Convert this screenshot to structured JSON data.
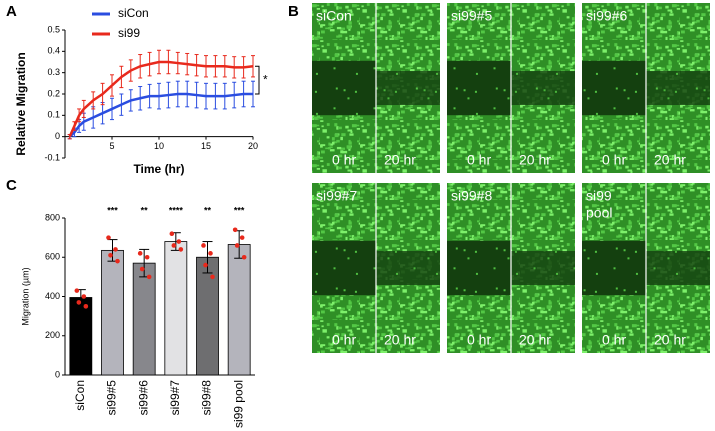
{
  "panel_labels": [
    "A",
    "B",
    "C"
  ],
  "chart_data": [
    {
      "type": "line",
      "xlabel": "Time (hr)",
      "ylabel": "Relative Migration",
      "x": [
        0.5,
        1,
        1.5,
        2,
        3,
        4,
        5,
        6,
        7,
        8,
        9,
        10,
        11,
        12,
        13,
        14,
        15,
        16,
        17,
        18,
        19,
        20
      ],
      "series": [
        {
          "name": "siCon",
          "color": "#2a4de0",
          "values": [
            0,
            0.02,
            0.05,
            0.07,
            0.09,
            0.11,
            0.13,
            0.15,
            0.17,
            0.18,
            0.19,
            0.19,
            0.195,
            0.2,
            0.2,
            0.195,
            0.19,
            0.19,
            0.19,
            0.195,
            0.2,
            0.2
          ],
          "errors": [
            0.01,
            0.02,
            0.03,
            0.04,
            0.05,
            0.05,
            0.05,
            0.05,
            0.05,
            0.055,
            0.055,
            0.06,
            0.06,
            0.06,
            0.06,
            0.06,
            0.06,
            0.06,
            0.06,
            0.06,
            0.06,
            0.06
          ]
        },
        {
          "name": "si99",
          "color": "#e8291c",
          "values": [
            0,
            0.05,
            0.1,
            0.13,
            0.17,
            0.2,
            0.24,
            0.28,
            0.31,
            0.33,
            0.34,
            0.35,
            0.35,
            0.345,
            0.34,
            0.335,
            0.33,
            0.33,
            0.33,
            0.325,
            0.325,
            0.33
          ],
          "errors": [
            0.01,
            0.02,
            0.03,
            0.04,
            0.04,
            0.05,
            0.05,
            0.05,
            0.05,
            0.055,
            0.055,
            0.055,
            0.055,
            0.05,
            0.05,
            0.05,
            0.05,
            0.05,
            0.05,
            0.05,
            0.05,
            0.05
          ]
        }
      ],
      "xlim": [
        0,
        20
      ],
      "xticks": [
        5,
        10,
        15,
        20
      ],
      "ylim": [
        -0.1,
        0.5
      ],
      "yticks": [
        -0.1,
        0,
        0.1,
        0.2,
        0.3,
        0.4,
        0.5
      ],
      "annotation": "*"
    },
    {
      "type": "bar",
      "ylabel": "Migration (µm)",
      "categories": [
        "siCon",
        "si99#5",
        "si99#6",
        "si99#7",
        "si99#8",
        "si99 pool"
      ],
      "values": [
        395,
        635,
        570,
        680,
        600,
        665
      ],
      "errors": [
        40,
        55,
        70,
        45,
        80,
        70
      ],
      "colors": [
        "#000000",
        "#b4b4bc",
        "#87878c",
        "#e2e2e4",
        "#6e6e70",
        "#b4b4bc"
      ],
      "significance": [
        null,
        "***",
        "**",
        "****",
        "**",
        "***"
      ],
      "points": [
        [
          430,
          400,
          370,
          350
        ],
        [
          700,
          640,
          610,
          580
        ],
        [
          620,
          600,
          540,
          500
        ],
        [
          720,
          680,
          660,
          640
        ],
        [
          660,
          620,
          560,
          500
        ],
        [
          740,
          700,
          660,
          600
        ]
      ],
      "point_color": "#e8291c",
      "ylim": [
        0,
        800
      ],
      "yticks": [
        0,
        200,
        400,
        600,
        800
      ]
    }
  ],
  "images": [
    {
      "label": [
        "siCon"
      ],
      "times": [
        "0 hr",
        "20 hr"
      ]
    },
    {
      "label": [
        "si99#5"
      ],
      "times": [
        "0 hr",
        "20 hr"
      ]
    },
    {
      "label": [
        "si99#6"
      ],
      "times": [
        "0 hr",
        "20 hr"
      ]
    },
    {
      "label": [
        "si99#7"
      ],
      "times": [
        "0 hr",
        "20 hr"
      ]
    },
    {
      "label": [
        "si99#8"
      ],
      "times": [
        "0 hr",
        "20 hr"
      ]
    },
    {
      "label": [
        "si99",
        "pool"
      ],
      "times": [
        "0 hr",
        "20 hr"
      ]
    }
  ]
}
